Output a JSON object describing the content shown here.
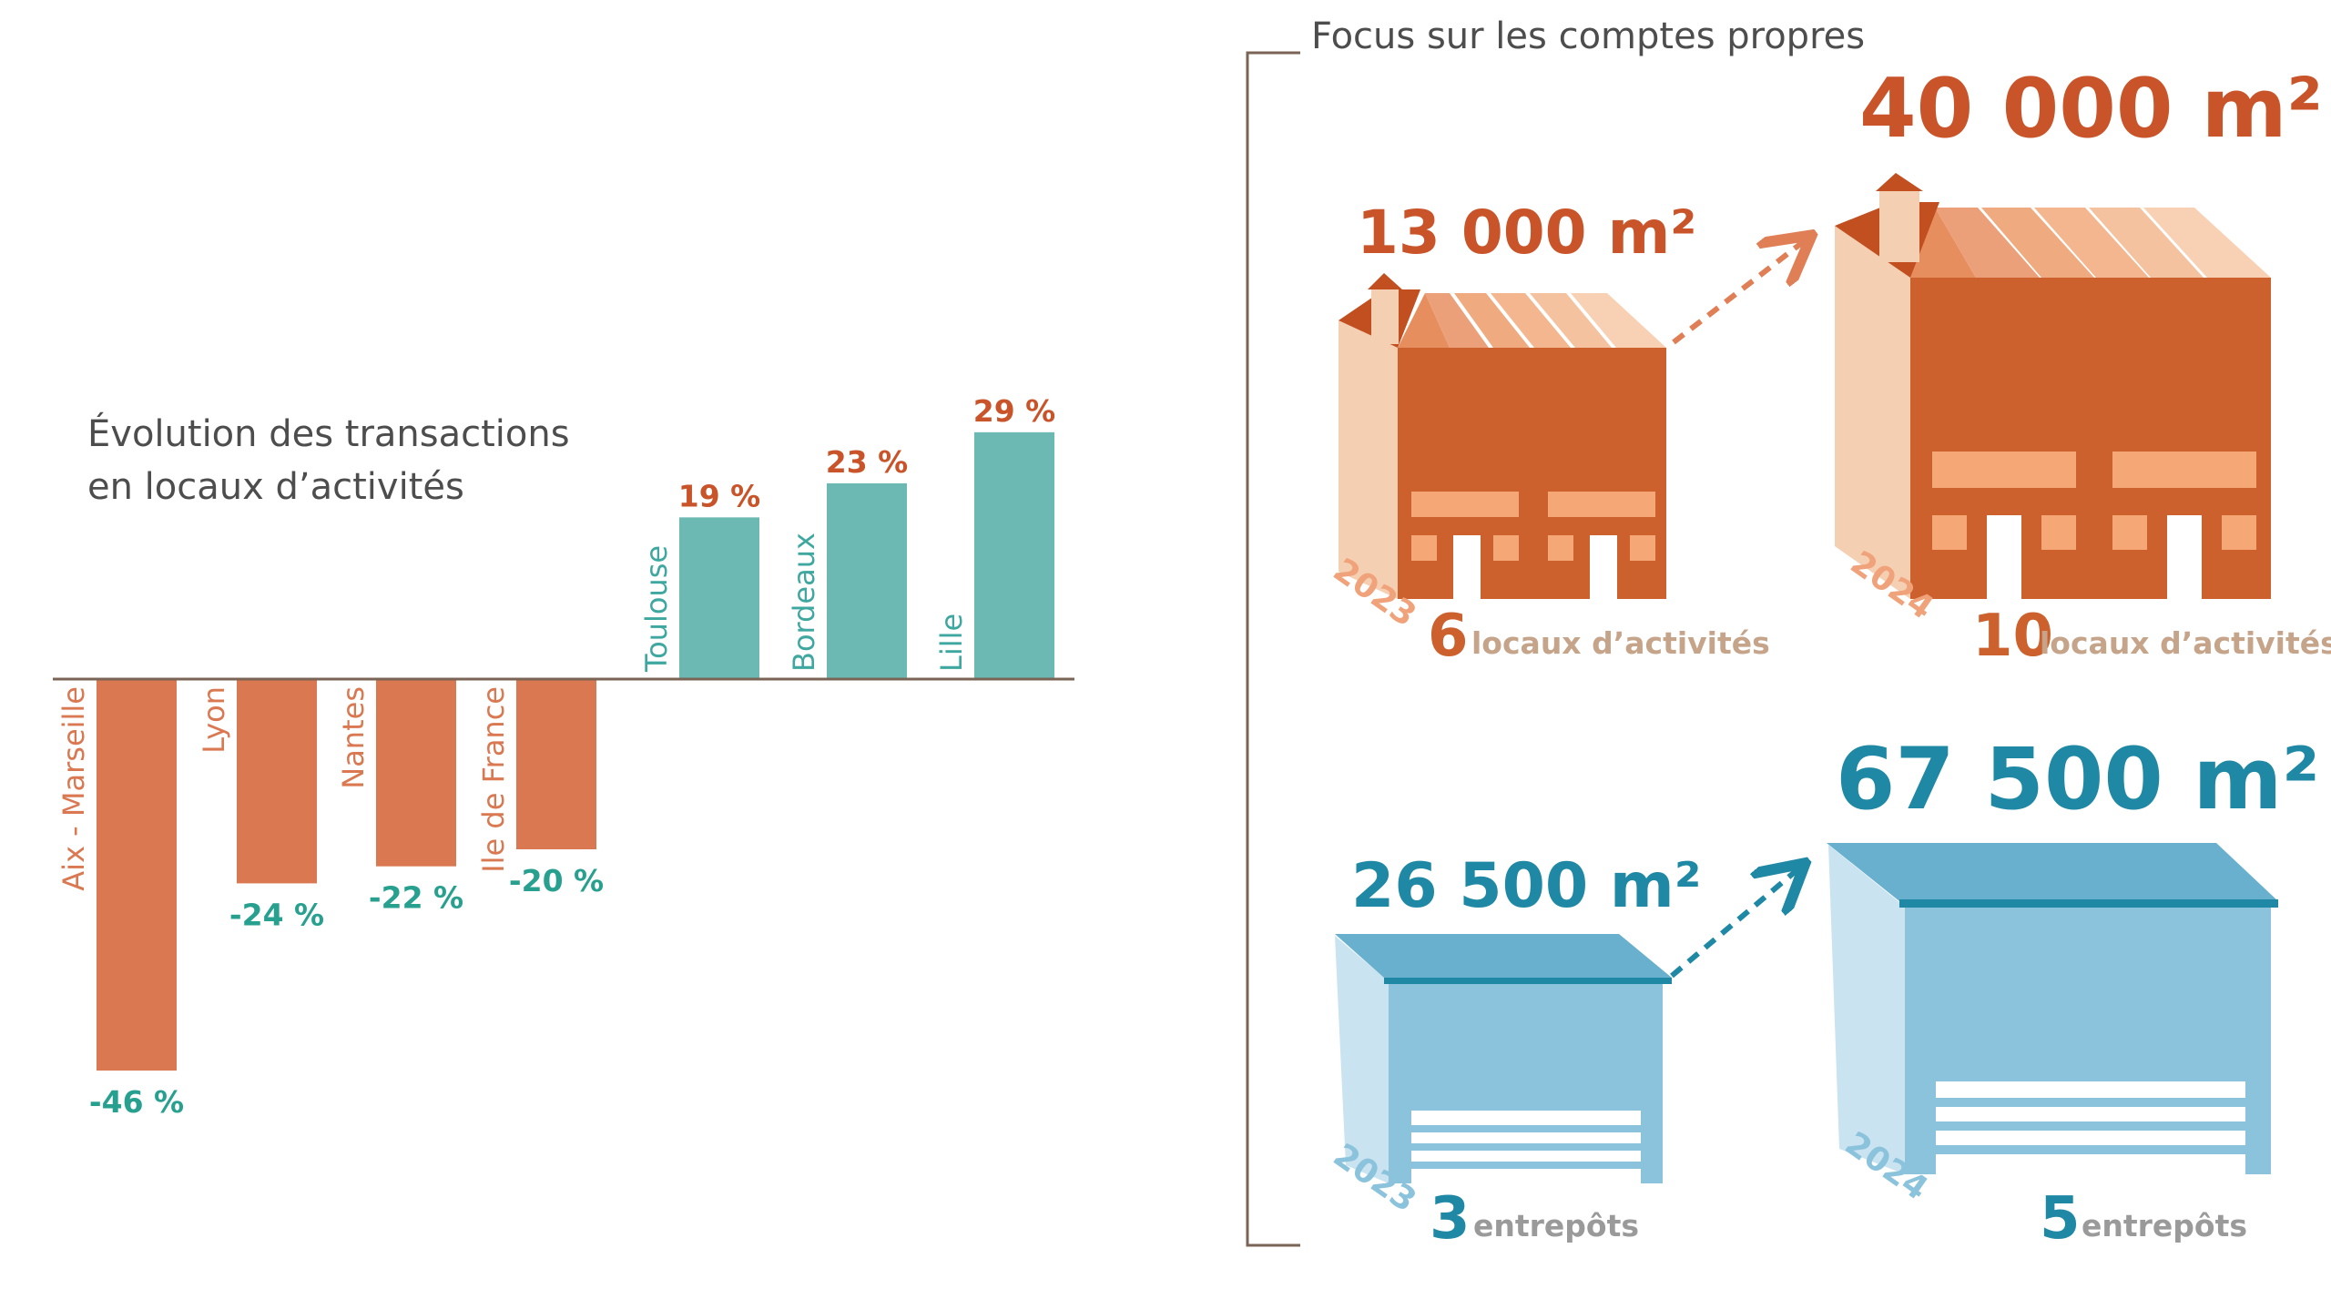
{
  "colors": {
    "negative_bar": "#d97851",
    "positive_bar": "#6cb8b2",
    "negative_value": "#27a08f",
    "positive_value": "#c9542a",
    "axis": "#7a6455",
    "orange_dark": "#cd612d",
    "orange_light": "#f5cfb1",
    "blue_dark": "#1f88a5",
    "blue_mid": "#8cc3dc",
    "blue_light": "#c9e3f1"
  },
  "chart_title_line1": "Évolution des transactions",
  "chart_title_line2": "en locaux d’activités",
  "chart_data": {
    "type": "bar",
    "title": "Évolution des transactions en locaux d’activités",
    "categories": [
      "Aix - Marseille",
      "Lyon",
      "Nantes",
      "Ile de France",
      "Toulouse",
      "Bordeaux",
      "Lille"
    ],
    "values": [
      -46,
      -24,
      -22,
      -20,
      19,
      23,
      29
    ],
    "value_labels": [
      "-46 %",
      "-24 %",
      "-22 %",
      "-20 %",
      "19 %",
      "23 %",
      "29 %"
    ],
    "ylim": [
      -46,
      29
    ],
    "grid": false,
    "legend": "none"
  },
  "focus": {
    "title": "Focus sur les comptes propres",
    "activities": {
      "area_2023": "13 000 m²",
      "area_2024": "40 000 m²",
      "year_2023": "2023",
      "year_2024": "2024",
      "count_2023": "6",
      "count_2024": "10",
      "label": "locaux d’activités",
      "icon": "factory-icon"
    },
    "warehouses": {
      "area_2023": "26 500 m²",
      "area_2024": "67 500 m²",
      "year_2023": "2023",
      "year_2024": "2024",
      "count_2023": "3",
      "count_2024": "5",
      "label": "entrepôts",
      "icon": "warehouse-icon"
    }
  }
}
